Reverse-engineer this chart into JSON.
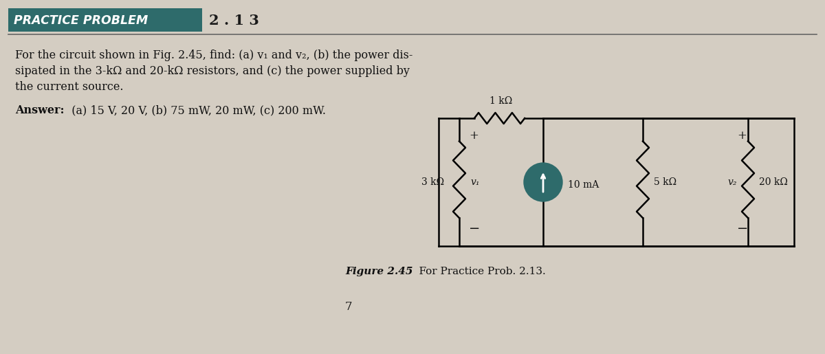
{
  "bg_color": "#d4cdc2",
  "header_box_color": "#2e6b6b",
  "header_text": "PRACTICE PROBLEM",
  "header_number": "2 . 1 3",
  "body_text_line1": "For the circuit shown in Fig. 2.45, find: (a) v₁ and v₂, (b) the power dis-",
  "body_text_line2": "sipated in the 3-kΩ and 20-kΩ resistors, and (c) the power supplied by",
  "body_text_line3": "the current source.",
  "answer_label": "Answer:",
  "answer_text": "  (a) 15 V, 20 V, (b) 75 mW, 20 mW, (c) 200 mW.",
  "figure_label": "Figure 2.45",
  "figure_caption": "    For Practice Prob. 2.13.",
  "page_number": "7",
  "circuit": {
    "wire_color": "#000000",
    "source_color": "#2e6b6b",
    "label_1kohm": "1 kΩ",
    "label_3kohm": "3 kΩ",
    "label_5kohm": "5 kΩ",
    "label_20kohm": "20 kΩ",
    "label_current": "10 mA",
    "label_v1": "v₁",
    "label_v2": "v₂"
  }
}
